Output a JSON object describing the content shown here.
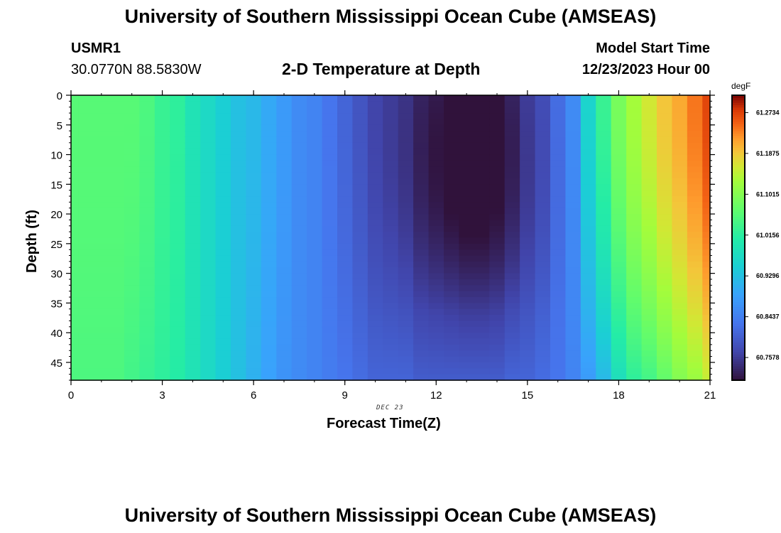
{
  "header": {
    "title_top": "University of Southern Mississippi Ocean Cube (AMSEAS)",
    "title_bottom": "University of Southern Mississippi Ocean Cube (AMSEAS)",
    "station": "USMR1",
    "coords": "30.0770N  88.5830W",
    "subtitle": "2-D Temperature at Depth",
    "model_start_label": "Model Start Time",
    "model_start_value": "12/23/2023 Hour 00"
  },
  "chart_data": {
    "type": "heatmap",
    "title": "2-D Temperature at Depth",
    "xlabel": "Forecast Time(Z)",
    "ylabel": "Depth (ft)",
    "date_label": "DEC 23",
    "xlim": [
      0,
      21
    ],
    "ylim": [
      0,
      48
    ],
    "xticks": [
      "0",
      "3",
      "6",
      "9",
      "12",
      "15",
      "18",
      "21"
    ],
    "yticks": [
      "0",
      "5",
      "10",
      "15",
      "20",
      "25",
      "30",
      "35",
      "40",
      "45"
    ],
    "x_hours": [
      0,
      0.5,
      1,
      1.5,
      2,
      2.5,
      3,
      3.5,
      4,
      4.5,
      5,
      5.5,
      6,
      6.5,
      7,
      7.5,
      8,
      8.5,
      9,
      9.5,
      10,
      10.5,
      11,
      11.5,
      12,
      12.5,
      13,
      13.5,
      14,
      14.5,
      15,
      15.5,
      16,
      16.5,
      17,
      17.5,
      18,
      18.5,
      19,
      19.5,
      20,
      20.5,
      21
    ],
    "surface_temp_degF": [
      61.06,
      61.06,
      61.06,
      61.06,
      61.06,
      61.05,
      61.03,
      61.02,
      60.99,
      60.97,
      60.95,
      60.93,
      60.92,
      60.9,
      60.88,
      60.86,
      60.85,
      60.83,
      60.81,
      60.79,
      60.77,
      60.76,
      60.75,
      60.73,
      60.72,
      60.71,
      60.7,
      60.7,
      60.71,
      60.73,
      60.76,
      60.78,
      60.82,
      60.86,
      60.96,
      61.03,
      61.09,
      61.13,
      61.16,
      61.19,
      61.21,
      61.24,
      61.27
    ],
    "bottom_temp_degF": [
      61.05,
      61.05,
      61.05,
      61.05,
      61.04,
      61.03,
      61.02,
      61.01,
      60.99,
      60.97,
      60.95,
      60.93,
      60.91,
      60.89,
      60.87,
      60.86,
      60.85,
      60.84,
      60.83,
      60.82,
      60.81,
      60.81,
      60.81,
      60.8,
      60.8,
      60.8,
      60.8,
      60.8,
      60.8,
      60.81,
      60.81,
      60.82,
      60.83,
      60.85,
      60.88,
      60.92,
      60.98,
      61.02,
      61.04,
      61.07,
      61.1,
      61.12,
      61.15
    ],
    "colorbar": {
      "label": "degF",
      "min": 60.71,
      "max": 61.31,
      "ticks": [
        "61.2734",
        "61.1875",
        "61.1015",
        "61.0156",
        "60.9296",
        "60.8437",
        "60.7578"
      ]
    }
  }
}
